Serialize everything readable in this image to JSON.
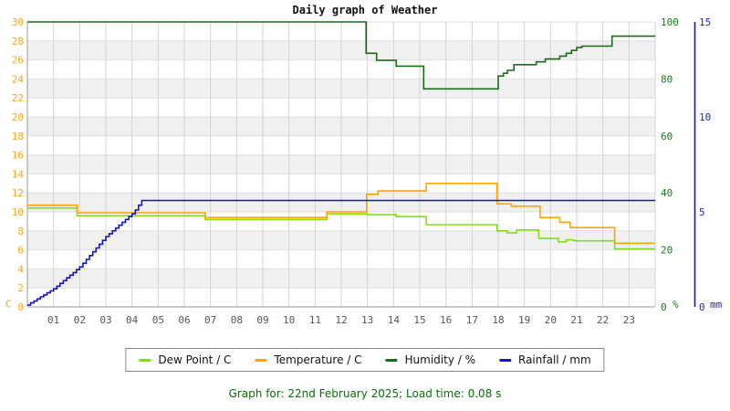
{
  "title": "Daily graph of Weather",
  "footer": {
    "text": "Graph for: 22nd February 2025; Load time: 0.08 s"
  },
  "legend": {
    "items": [
      {
        "label": "Dew Point / C",
        "color": "#82dd1b"
      },
      {
        "label": "Temperature / C",
        "color": "#ffa500"
      },
      {
        "label": "Humidity / %",
        "color": "#1a6b1a"
      },
      {
        "label": "Rainfall / mm",
        "color": "#1414cc"
      }
    ]
  },
  "colors": {
    "band": "#f0f0f0",
    "grid_vertical": "#d4d4d4",
    "grid_horizontal": "#e0e0e0",
    "axis_border": "#999999",
    "x_labels": "#555555",
    "left_axis_labels": "#f7a418",
    "humidity_axis_labels": "#1a7a1a",
    "rainfall_axis_labels": "#2222cc",
    "title_color": "#111111",
    "caption_color": "#066f06"
  },
  "chart_data": {
    "type": "line",
    "title": "Daily graph of Weather",
    "x_axis": {
      "range_hours": [
        0,
        24
      ],
      "tick_labels": [
        "01",
        "02",
        "03",
        "04",
        "05",
        "06",
        "07",
        "08",
        "09",
        "10",
        "11",
        "12",
        "13",
        "14",
        "15",
        "16",
        "17",
        "18",
        "19",
        "20",
        "21",
        "22",
        "23"
      ],
      "grid": true
    },
    "y_axis_left": {
      "unit": "C",
      "range": [
        0,
        30
      ],
      "ticks": [
        0,
        2,
        4,
        6,
        8,
        10,
        12,
        14,
        16,
        18,
        20,
        22,
        24,
        26,
        28,
        30
      ]
    },
    "y_axis_right_humidity": {
      "unit": "%",
      "range": [
        0,
        100
      ],
      "ticks": [
        0,
        20,
        40,
        60,
        80,
        100
      ]
    },
    "y_axis_right_rainfall": {
      "unit": "mm",
      "range": [
        0,
        15
      ],
      "ticks": [
        0,
        5,
        10,
        15
      ]
    },
    "series": [
      {
        "name": "Dew Point / C",
        "axis": "left",
        "color": "#82dd1b",
        "interpolation": "step-after",
        "step_points": [
          [
            0,
            10.4
          ],
          [
            1.9,
            9.6
          ],
          [
            6.8,
            9.2
          ],
          [
            11.45,
            9.8
          ],
          [
            13.0,
            9.7
          ],
          [
            14.1,
            9.5
          ],
          [
            15.25,
            8.65
          ],
          [
            17.95,
            8.0
          ],
          [
            18.35,
            7.8
          ],
          [
            18.7,
            8.1
          ],
          [
            19.55,
            7.2
          ],
          [
            20.3,
            6.85
          ],
          [
            20.6,
            7.05
          ],
          [
            20.9,
            6.95
          ],
          [
            22.45,
            6.1
          ],
          [
            24,
            6.1
          ]
        ]
      },
      {
        "name": "Temperature / C",
        "axis": "left",
        "color": "#ffa500",
        "interpolation": "step-after",
        "step_points": [
          [
            0,
            10.7
          ],
          [
            1.9,
            9.9
          ],
          [
            6.8,
            9.4
          ],
          [
            11.45,
            10.0
          ],
          [
            12.97,
            11.85
          ],
          [
            13.4,
            12.2
          ],
          [
            15.25,
            13.0
          ],
          [
            17.95,
            10.85
          ],
          [
            18.5,
            10.6
          ],
          [
            19.6,
            9.4
          ],
          [
            20.35,
            8.9
          ],
          [
            20.75,
            8.35
          ],
          [
            22.45,
            6.7
          ],
          [
            24,
            6.7
          ]
        ]
      },
      {
        "name": "Humidity / %",
        "axis": "humidity",
        "color": "#1a6b1a",
        "interpolation": "step-after",
        "step_points": [
          [
            0,
            100
          ],
          [
            12.95,
            89
          ],
          [
            13.35,
            86.5
          ],
          [
            14.1,
            84.5
          ],
          [
            15.15,
            76.5
          ],
          [
            18.0,
            81
          ],
          [
            18.2,
            82
          ],
          [
            18.35,
            83
          ],
          [
            18.6,
            85
          ],
          [
            19.45,
            86
          ],
          [
            19.8,
            87
          ],
          [
            20.35,
            88
          ],
          [
            20.6,
            89
          ],
          [
            20.8,
            90
          ],
          [
            21.0,
            91
          ],
          [
            21.2,
            91.5
          ],
          [
            22.35,
            95
          ],
          [
            24,
            95
          ]
        ]
      },
      {
        "name": "Rainfall / mm",
        "axis": "rainfall",
        "color": "#1414cc",
        "interpolation": "step-after",
        "step_points": [
          [
            0,
            0.1
          ],
          [
            0.125,
            0.21
          ],
          [
            0.25,
            0.31
          ],
          [
            0.375,
            0.42
          ],
          [
            0.5,
            0.53
          ],
          [
            0.625,
            0.63
          ],
          [
            0.75,
            0.74
          ],
          [
            0.875,
            0.84
          ],
          [
            1,
            0.95
          ],
          [
            1.125,
            1.09
          ],
          [
            1.25,
            1.24
          ],
          [
            1.375,
            1.38
          ],
          [
            1.5,
            1.53
          ],
          [
            1.625,
            1.67
          ],
          [
            1.75,
            1.81
          ],
          [
            1.875,
            1.96
          ],
          [
            2,
            2.1
          ],
          [
            2.125,
            2.3
          ],
          [
            2.25,
            2.5
          ],
          [
            2.375,
            2.7
          ],
          [
            2.5,
            2.9
          ],
          [
            2.625,
            3.1
          ],
          [
            2.75,
            3.3
          ],
          [
            2.875,
            3.5
          ],
          [
            3,
            3.7
          ],
          [
            3.125,
            3.85
          ],
          [
            3.25,
            4.0
          ],
          [
            3.375,
            4.15
          ],
          [
            3.5,
            4.3
          ],
          [
            3.625,
            4.45
          ],
          [
            3.75,
            4.6
          ],
          [
            3.875,
            4.75
          ],
          [
            4,
            4.9
          ],
          [
            4.125,
            5.1
          ],
          [
            4.25,
            5.35
          ],
          [
            4.375,
            5.6
          ],
          [
            24,
            5.6
          ]
        ]
      }
    ],
    "legend_position": "bottom"
  }
}
